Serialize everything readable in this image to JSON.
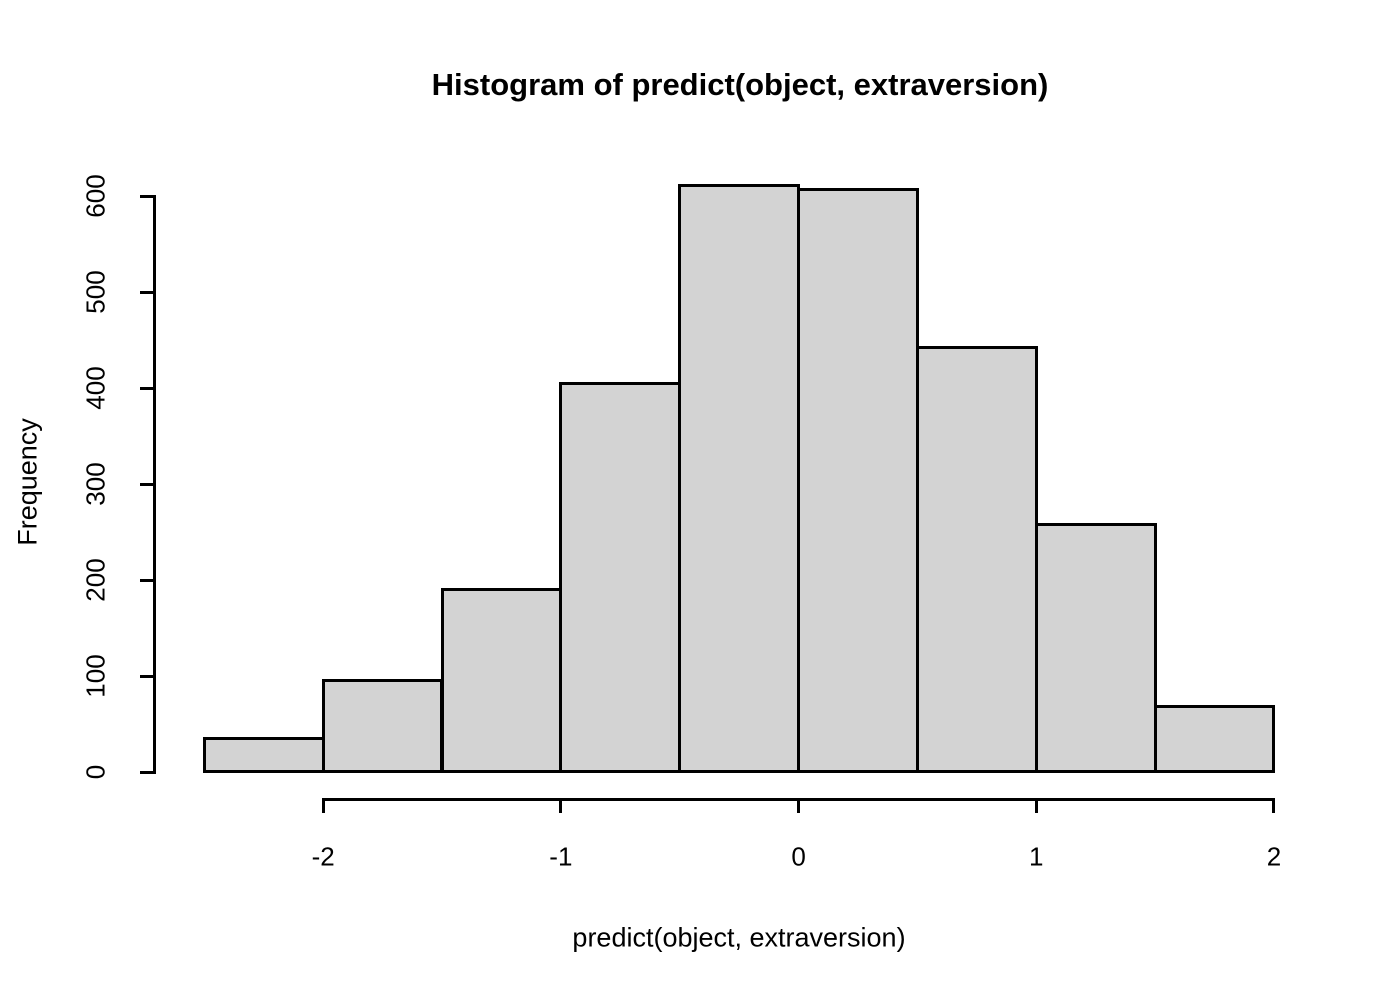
{
  "title": "Histogram of predict(object, extraversion)",
  "x_axis_label": "predict(object, extraversion)",
  "y_axis_label": "Frequency",
  "colors": {
    "bar_fill": "#d3d3d3",
    "bar_border": "#000000",
    "axis": "#000000",
    "text": "#000000",
    "background": "#ffffff"
  },
  "chart_data": {
    "type": "bar",
    "subtype": "histogram",
    "title": "Histogram of predict(object, extraversion)",
    "xlabel": "predict(object, extraversion)",
    "ylabel": "Frequency",
    "bin_edges": [
      -2.5,
      -2.0,
      -1.5,
      -1.0,
      -0.5,
      0.0,
      0.5,
      1.0,
      1.5,
      2.0
    ],
    "values": [
      35,
      95,
      190,
      405,
      611,
      607,
      442,
      258,
      68
    ],
    "x_ticks": [
      -2,
      -1,
      0,
      1,
      2
    ],
    "y_ticks": [
      0,
      100,
      200,
      300,
      400,
      500,
      600
    ],
    "xlim": [
      -2.5,
      2.0
    ],
    "ylim": [
      0,
      600
    ],
    "grid": false,
    "legend": null,
    "bar_fill": "#d3d3d3",
    "bar_border": "#000000"
  }
}
